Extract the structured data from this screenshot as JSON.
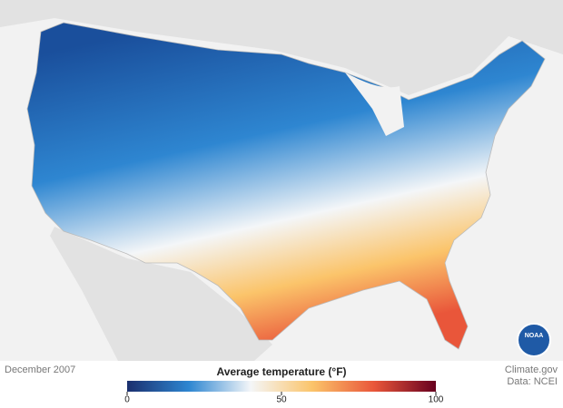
{
  "map": {
    "date": "December 2007",
    "credit": "Climate.gov",
    "source": "Data: NCEI",
    "logo": "NOAA"
  },
  "legend": {
    "title": "Average temperature (°F)",
    "lim": [
      0,
      100
    ],
    "ticks": [
      0,
      50,
      100
    ],
    "colors": [
      "#1b2f6e",
      "#2e86d1",
      "#f4f6f8",
      "#fbc46a",
      "#e9563a",
      "#67001f"
    ]
  }
}
